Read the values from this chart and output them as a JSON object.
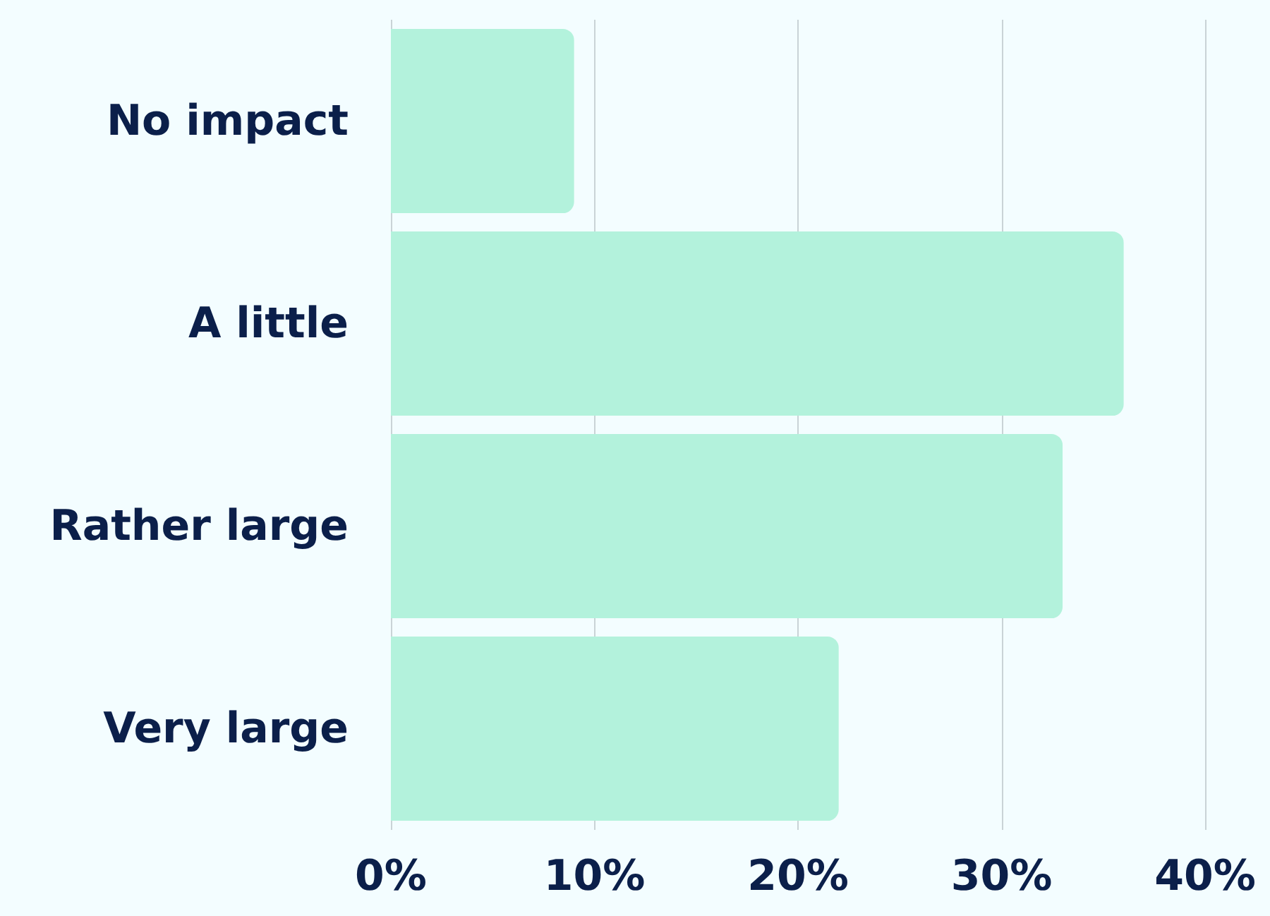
{
  "chart_data": {
    "type": "bar",
    "orientation": "horizontal",
    "categories": [
      "No impact",
      "A little",
      "Rather large",
      "Very large"
    ],
    "values": [
      9,
      36,
      33,
      22
    ],
    "color": "#b3f2dc",
    "xlim": [
      0,
      40
    ],
    "xticks": [
      {
        "value": 0,
        "label": "0%"
      },
      {
        "value": 10,
        "label": "10%"
      },
      {
        "value": 20,
        "label": "20%"
      },
      {
        "value": 30,
        "label": "30%"
      },
      {
        "value": 40,
        "label": "40%"
      }
    ],
    "grid": "x"
  }
}
